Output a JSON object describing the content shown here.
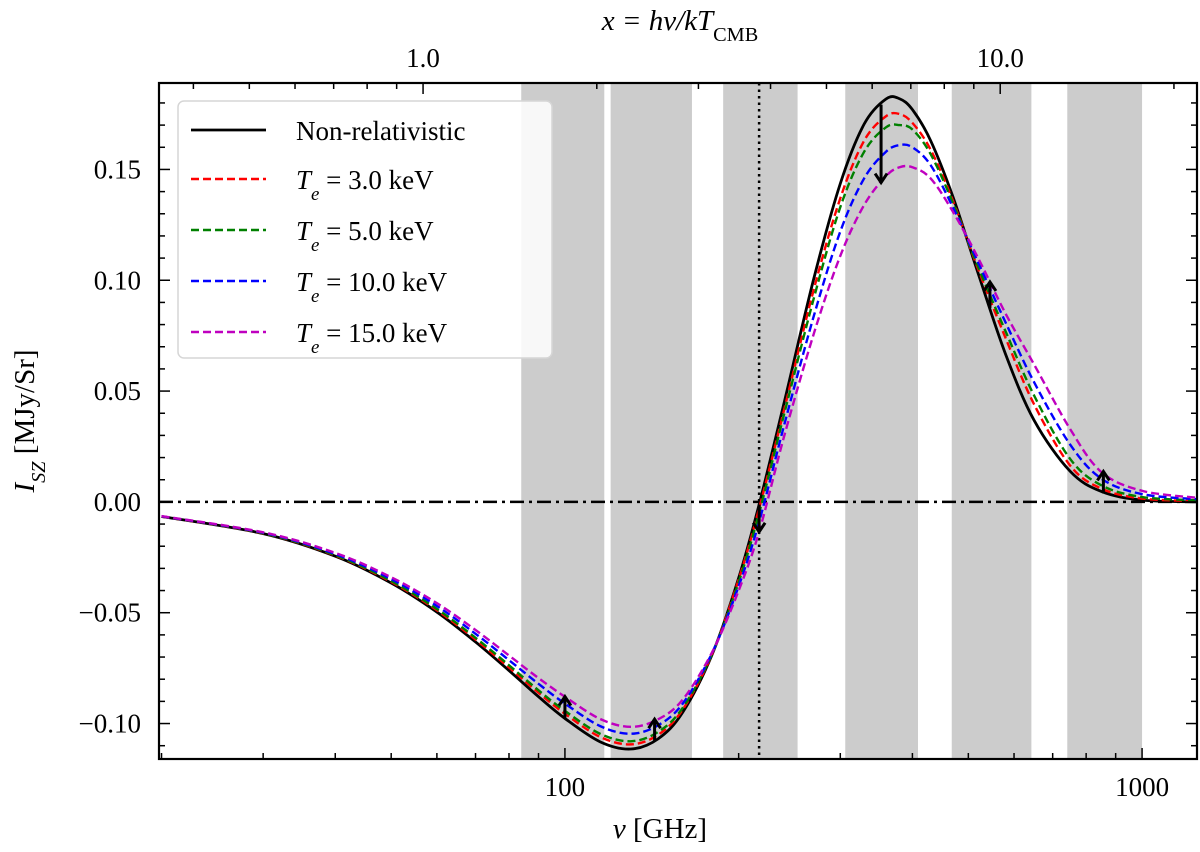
{
  "chart_data": {
    "type": "line",
    "xscale": "log",
    "xlabel": "ν [GHz]",
    "ylabel": "I_{SZ} [MJy/Sr]",
    "top_xlabel": "x = hν/kT_{CMB}",
    "xlim": [
      19.8,
      1245
    ],
    "ylim": [
      -0.116,
      0.189
    ],
    "grid": false,
    "legend_placement": "top-left",
    "xticks": [
      100,
      1000
    ],
    "xtick_labels": [
      "100",
      "1000"
    ],
    "top_xticks": [
      1,
      10
    ],
    "top_xtick_labels": [
      "1.0",
      "10.0"
    ],
    "top_axis_conversion_GHz_per_x": 56.78,
    "yticks": [
      -0.1,
      -0.05,
      0.0,
      0.05,
      0.1,
      0.15
    ],
    "ytick_labels": [
      "−0.10",
      "−0.05",
      "0.00",
      "0.05",
      "0.10",
      "0.15"
    ],
    "shaded_bands_GHz": [
      [
        84,
        117
      ],
      [
        120,
        166
      ],
      [
        188,
        253
      ],
      [
        306,
        409
      ],
      [
        468,
        643
      ],
      [
        742,
        1000
      ]
    ],
    "band_color": "#cccccc",
    "vertical_dotted_line_GHz": 217,
    "horizontal_dashdot_line": 0.0,
    "arrows_at_GHz": [
      100,
      143,
      217,
      353,
      545,
      857
    ],
    "x": [
      20,
      30,
      40,
      50,
      60,
      70,
      80,
      90,
      100,
      115,
      130,
      145,
      160,
      180,
      200,
      217,
      240,
      270,
      300,
      330,
      360,
      380,
      400,
      430,
      470,
      520,
      580,
      650,
      750,
      850,
      1000,
      1250
    ],
    "series": [
      {
        "name": "Non-relativistic",
        "color": "#000000",
        "style": "solid",
        "values": [
          -0.0066,
          -0.0143,
          -0.0245,
          -0.0366,
          -0.0497,
          -0.0632,
          -0.0761,
          -0.0879,
          -0.0977,
          -0.1082,
          -0.1115,
          -0.1069,
          -0.0949,
          -0.0687,
          -0.0343,
          -0.0012,
          0.0452,
          0.1009,
          0.1436,
          0.1705,
          0.1818,
          0.1819,
          0.177,
          0.1631,
          0.1378,
          0.1031,
          0.0667,
          0.0368,
          0.0139,
          0.0047,
          0.0008,
          0.0
        ]
      },
      {
        "name": "T_e = 3.0 keV",
        "color": "#ff0000",
        "style": "dashed",
        "values": [
          -0.0066,
          -0.0142,
          -0.0242,
          -0.0361,
          -0.0489,
          -0.0621,
          -0.0747,
          -0.0861,
          -0.0956,
          -0.106,
          -0.1094,
          -0.1051,
          -0.0937,
          -0.0685,
          -0.035,
          -0.003,
          0.042,
          0.096,
          0.137,
          0.163,
          0.174,
          0.175,
          0.171,
          0.159,
          0.136,
          0.105,
          0.074,
          0.044,
          0.0165,
          0.006,
          0.0015,
          0.0004
        ]
      },
      {
        "name": "T_e = 5.0 keV",
        "color": "#008000",
        "style": "dashed",
        "values": [
          -0.0065,
          -0.0141,
          -0.024,
          -0.0357,
          -0.0483,
          -0.0613,
          -0.0737,
          -0.085,
          -0.0943,
          -0.1046,
          -0.108,
          -0.1038,
          -0.0929,
          -0.0684,
          -0.0362,
          -0.005,
          0.04,
          0.092,
          0.133,
          0.158,
          0.169,
          0.17,
          0.168,
          0.157,
          0.135,
          0.106,
          0.077,
          0.048,
          0.0195,
          0.0075,
          0.0022,
          0.0007
        ]
      },
      {
        "name": "T_e = 10.0 keV",
        "color": "#0000ff",
        "style": "dashed",
        "values": [
          -0.0065,
          -0.0139,
          -0.0235,
          -0.0348,
          -0.047,
          -0.0595,
          -0.0714,
          -0.0821,
          -0.091,
          -0.1011,
          -0.1046,
          -0.1008,
          -0.091,
          -0.068,
          -0.038,
          -0.009,
          0.035,
          0.084,
          0.122,
          0.146,
          0.158,
          0.161,
          0.16,
          0.152,
          0.133,
          0.108,
          0.081,
          0.054,
          0.026,
          0.0105,
          0.0035,
          0.0012
        ]
      },
      {
        "name": "T_e = 15.0 keV",
        "color": "#bf00bf",
        "style": "dashed",
        "values": [
          -0.0064,
          -0.0137,
          -0.023,
          -0.034,
          -0.0457,
          -0.0578,
          -0.0693,
          -0.0795,
          -0.0879,
          -0.0979,
          -0.1015,
          -0.0981,
          -0.0892,
          -0.0677,
          -0.04,
          -0.0135,
          0.03,
          0.076,
          0.111,
          0.134,
          0.147,
          0.151,
          0.151,
          0.146,
          0.131,
          0.11,
          0.085,
          0.062,
          0.033,
          0.0135,
          0.005,
          0.0018
        ]
      }
    ]
  }
}
